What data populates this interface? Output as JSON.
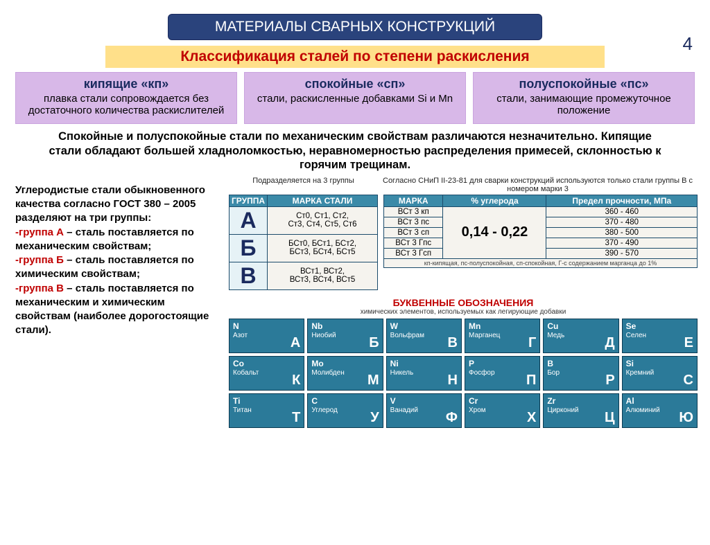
{
  "page_number": "4",
  "main_title": "МАТЕРИАЛЫ СВАРНЫХ КОНСТРУКЦИЙ",
  "subtitle": "Классификация сталей по степени раскисления",
  "cards": [
    {
      "head": "кипящие «кп»",
      "body": "плавка стали сопровождается без достаточного количества раскислителей"
    },
    {
      "head": "спокойные «сп»",
      "body": "стали, раскисленные добавками Si и Mn"
    },
    {
      "head": "полуспокойные «пс»",
      "body": "стали, занимающие промежуточное положение"
    }
  ],
  "paragraph": "Спокойные и полуспокойные стали по механическим свойствам различаются незначительно. Кипящие стали обладают большей хладноломкостью, неравномерностью распределения примесей, склонностью к горячим трещинам.",
  "left_text": {
    "l1": "Углеродистые стали обыкновенного качества согласно ГОСТ 380 – 2005 разделяют на три группы:",
    "gA": "-группа А",
    "gA_txt": " – сталь поставляется по механическим свойствам;",
    "gB": "-группа Б",
    "gB_txt": " – сталь поставляется по химическим свойствам;",
    "gV": "-группа В",
    "gV_txt": " – сталь поставляется по механическим и химическим свойствам (наиболее дорогостоящие стали)."
  },
  "caption_left": "Подразделяется на 3 группы",
  "caption_right": "Согласно СНиП II-23-81 для сварки конструкций используются только стали группы В с номером марки 3",
  "table1": {
    "headers": [
      "ГРУППА",
      "МАРКА СТАЛИ"
    ],
    "rows": [
      {
        "letter": "А",
        "marks": [
          "Ст0, Ст1, Ст2,",
          "Ст3, Ст4, Ст5, Ст6"
        ]
      },
      {
        "letter": "Б",
        "marks": [
          "БСт0, БСт1, БСт2,",
          "БСт3, БСт4, БСт5"
        ]
      },
      {
        "letter": "В",
        "marks": [
          "ВСт1, ВСт2,",
          "ВСт3, ВСт4, ВСт5"
        ]
      }
    ]
  },
  "table2": {
    "headers": [
      "МАРКА",
      "% углерода",
      "Предел прочности, МПа"
    ],
    "carbon": "0,14 - 0,22",
    "rows": [
      {
        "mark": "ВСт 3 кп",
        "strength": "360 - 460"
      },
      {
        "mark": "ВСт 3 пс",
        "strength": "370 - 480"
      },
      {
        "mark": "ВСт 3 сп",
        "strength": "380 - 500"
      },
      {
        "mark": "ВСт 3 Гпс",
        "strength": "370 - 490"
      },
      {
        "mark": "ВСт 3 Гсп",
        "strength": "390 - 570"
      }
    ],
    "footnote": "кп-кипящая, пс-полуспокойная, сп-спокойная, Г-с содержанием марганца до 1%"
  },
  "legend_title": "БУКВЕННЫЕ ОБОЗНАЧЕНИЯ",
  "legend_sub": "химических элементов, используемых как легирующие добавки",
  "elements": [
    {
      "sym": "N",
      "name": "Азот",
      "ru": "А"
    },
    {
      "sym": "Nb",
      "name": "Ниобий",
      "ru": "Б"
    },
    {
      "sym": "W",
      "name": "Вольфрам",
      "ru": "В"
    },
    {
      "sym": "Mn",
      "name": "Марганец",
      "ru": "Г"
    },
    {
      "sym": "Cu",
      "name": "Медь",
      "ru": "Д"
    },
    {
      "sym": "Se",
      "name": "Селен",
      "ru": "Е"
    },
    {
      "sym": "Co",
      "name": "Кобальт",
      "ru": "К"
    },
    {
      "sym": "Mo",
      "name": "Молибден",
      "ru": "М"
    },
    {
      "sym": "Ni",
      "name": "Никель",
      "ru": "Н"
    },
    {
      "sym": "P",
      "name": "Фосфор",
      "ru": "П"
    },
    {
      "sym": "B",
      "name": "Бор",
      "ru": "Р"
    },
    {
      "sym": "Si",
      "name": "Кремний",
      "ru": "С"
    },
    {
      "sym": "Ti",
      "name": "Титан",
      "ru": "Т"
    },
    {
      "sym": "C",
      "name": "Углерод",
      "ru": "У"
    },
    {
      "sym": "V",
      "name": "Ванадий",
      "ru": "Ф"
    },
    {
      "sym": "Cr",
      "name": "Хром",
      "ru": "Х"
    },
    {
      "sym": "Zr",
      "name": "Цирконий",
      "ru": "Ц"
    },
    {
      "sym": "Al",
      "name": "Алюминий",
      "ru": "Ю"
    }
  ],
  "colors": {
    "title_bg": "#2a437c",
    "subtitle_bg": "#ffe08a",
    "subtitle_text": "#c00000",
    "card_bg": "#d8b8e8",
    "table_header_bg": "#3b8aa8",
    "element_bg": "#2b7a99"
  }
}
